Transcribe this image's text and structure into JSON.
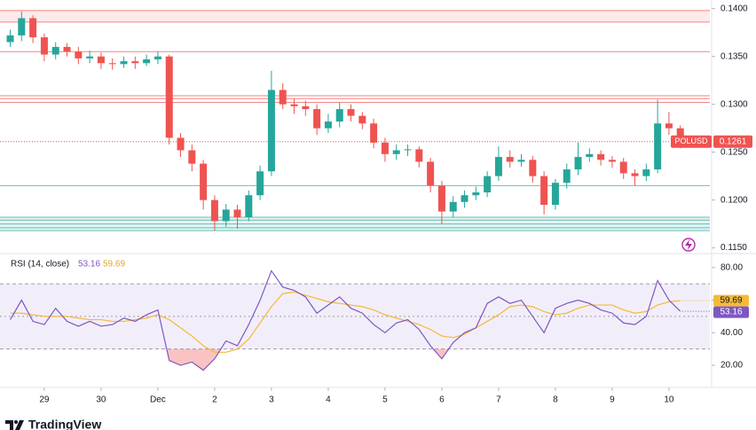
{
  "chart_data": [
    {
      "type": "candlestick",
      "symbol": "POLUSD",
      "x": [
        -0.6,
        -0.4,
        -0.2,
        0,
        0.2,
        0.4,
        0.6,
        0.8,
        1,
        1.2,
        1.4,
        1.6,
        1.8,
        2,
        2.2,
        2.4,
        2.6,
        2.8,
        3,
        3.2,
        3.4,
        3.6,
        3.8,
        4,
        4.2,
        4.4,
        4.6,
        4.8,
        5,
        5.2,
        5.4,
        5.6,
        5.8,
        6,
        6.2,
        6.4,
        6.6,
        6.8,
        7,
        7.2,
        7.4,
        7.6,
        7.8,
        8,
        8.2,
        8.4,
        8.6,
        8.8,
        9,
        9.2,
        9.4,
        9.6,
        9.8,
        10,
        10.2,
        10.4,
        10.6,
        10.8,
        11,
        11.2
      ],
      "open": [
        0.1365,
        0.1372,
        0.139,
        0.137,
        0.1352,
        0.136,
        0.1355,
        0.1348,
        0.135,
        0.1343,
        0.1342,
        0.1345,
        0.1343,
        0.1347,
        0.135,
        0.1265,
        0.1252,
        0.1238,
        0.12,
        0.1178,
        0.119,
        0.1182,
        0.1205,
        0.123,
        0.1315,
        0.13,
        0.1298,
        0.1295,
        0.1275,
        0.1282,
        0.1295,
        0.1288,
        0.128,
        0.126,
        0.1248,
        0.1252,
        0.1253,
        0.124,
        0.1215,
        0.1188,
        0.1198,
        0.1205,
        0.1208,
        0.1225,
        0.1245,
        0.124,
        0.1242,
        0.1225,
        0.1195,
        0.1218,
        0.1232,
        0.1245,
        0.1248,
        0.1242,
        0.124,
        0.1228,
        0.1225,
        0.1232,
        0.128,
        0.1275
      ],
      "high": [
        0.1378,
        0.1397,
        0.1393,
        0.1374,
        0.1365,
        0.1364,
        0.136,
        0.1356,
        0.1354,
        0.1348,
        0.135,
        0.135,
        0.1352,
        0.1355,
        0.1352,
        0.127,
        0.1258,
        0.1242,
        0.1205,
        0.1196,
        0.1195,
        0.121,
        0.1236,
        0.1335,
        0.1322,
        0.1306,
        0.1304,
        0.13,
        0.129,
        0.1302,
        0.13,
        0.1292,
        0.1285,
        0.1265,
        0.1258,
        0.1258,
        0.1256,
        0.1244,
        0.122,
        0.1204,
        0.121,
        0.1214,
        0.123,
        0.1256,
        0.1252,
        0.1248,
        0.1246,
        0.123,
        0.1222,
        0.1238,
        0.126,
        0.1254,
        0.1252,
        0.1246,
        0.1244,
        0.1232,
        0.1238,
        0.1305,
        0.1292,
        0.1278
      ],
      "low": [
        0.136,
        0.1366,
        0.1364,
        0.1345,
        0.1347,
        0.135,
        0.1342,
        0.1343,
        0.1337,
        0.1336,
        0.1338,
        0.1337,
        0.134,
        0.1342,
        0.1258,
        0.1245,
        0.123,
        0.119,
        0.1168,
        0.1172,
        0.117,
        0.1178,
        0.12,
        0.1225,
        0.1295,
        0.129,
        0.1288,
        0.1268,
        0.127,
        0.1276,
        0.1282,
        0.1274,
        0.1254,
        0.124,
        0.1242,
        0.1246,
        0.1234,
        0.1208,
        0.1175,
        0.1182,
        0.1192,
        0.12,
        0.1203,
        0.122,
        0.1234,
        0.1235,
        0.1218,
        0.1185,
        0.119,
        0.1212,
        0.1226,
        0.124,
        0.1236,
        0.1234,
        0.1222,
        0.1215,
        0.122,
        0.1228,
        0.1268,
        0.1254
      ],
      "close": [
        0.1372,
        0.139,
        0.137,
        0.1352,
        0.136,
        0.1355,
        0.1348,
        0.135,
        0.1343,
        0.1342,
        0.1345,
        0.1343,
        0.1347,
        0.135,
        0.1265,
        0.1252,
        0.1238,
        0.12,
        0.1178,
        0.119,
        0.1182,
        0.1205,
        0.123,
        0.1315,
        0.13,
        0.1298,
        0.1295,
        0.1275,
        0.1282,
        0.1295,
        0.1288,
        0.128,
        0.126,
        0.1248,
        0.1252,
        0.1253,
        0.124,
        0.1215,
        0.1188,
        0.1198,
        0.1205,
        0.1208,
        0.1225,
        0.1245,
        0.124,
        0.1242,
        0.1225,
        0.1195,
        0.1218,
        0.1232,
        0.1245,
        0.1248,
        0.1242,
        0.124,
        0.1228,
        0.1225,
        0.1232,
        0.128,
        0.1275,
        0.1261
      ],
      "up_color": "#26a69a",
      "down_color": "#ef5350",
      "xlim": [
        -0.78,
        11.72
      ],
      "xticks": [
        {
          "value": 0,
          "label": "29"
        },
        {
          "value": 1,
          "label": "30"
        },
        {
          "value": 2,
          "label": "Dec"
        },
        {
          "value": 3,
          "label": "2"
        },
        {
          "value": 4,
          "label": "3"
        },
        {
          "value": 5,
          "label": "4"
        },
        {
          "value": 6,
          "label": "5"
        },
        {
          "value": 7,
          "label": "6"
        },
        {
          "value": 8,
          "label": "7"
        },
        {
          "value": 9,
          "label": "8"
        },
        {
          "value": 10,
          "label": "9"
        },
        {
          "value": 11,
          "label": "10"
        }
      ],
      "ylim": [
        0.1145,
        0.1409
      ],
      "yticks": [
        {
          "value": 0.14,
          "label": "0.1400"
        },
        {
          "value": 0.135,
          "label": "0.1350"
        },
        {
          "value": 0.13,
          "label": "0.1300"
        },
        {
          "value": 0.125,
          "label": "0.1250"
        },
        {
          "value": 0.12,
          "label": "0.1200"
        },
        {
          "value": 0.115,
          "label": "0.1150"
        }
      ],
      "zones": [
        {
          "from": 0.1386,
          "to": 0.1398,
          "color": "#ef5350"
        },
        {
          "from": 0.1168,
          "to": 0.1182,
          "color": "#26a69a"
        }
      ],
      "levels": [
        {
          "value": 0.1398,
          "color": "#ef5350"
        },
        {
          "value": 0.1386,
          "color": "#ef5350"
        },
        {
          "value": 0.1355,
          "color": "#ef5350"
        },
        {
          "value": 0.1309,
          "color": "#ef5350"
        },
        {
          "value": 0.1306,
          "color": "#ef5350"
        },
        {
          "value": 0.1302,
          "color": "#ef5350"
        },
        {
          "value": 0.1215,
          "color": "#26a69a"
        },
        {
          "value": 0.1182,
          "color": "#26a69a"
        },
        {
          "value": 0.1179,
          "color": "#26a69a"
        },
        {
          "value": 0.1175,
          "color": "#26a69a"
        },
        {
          "value": 0.1171,
          "color": "#26a69a"
        },
        {
          "value": 0.1168,
          "color": "#26a69a"
        }
      ]
    },
    {
      "type": "line",
      "title": "RSI (14, close)",
      "series": [
        {
          "color": "#7e57c2",
          "values": [
            48,
            60,
            47,
            45,
            55,
            47,
            44,
            47,
            44,
            45,
            49,
            47,
            51,
            54,
            23,
            20,
            22,
            17,
            24,
            35,
            32,
            45,
            60,
            78,
            68,
            66,
            62,
            52,
            57,
            62,
            55,
            52,
            45,
            40,
            46,
            48,
            42,
            32,
            24,
            34,
            40,
            43,
            58,
            62,
            58,
            60,
            50,
            40,
            55,
            58,
            60,
            58,
            54,
            52,
            46,
            45,
            50,
            72,
            60,
            53.16
          ]
        },
        {
          "color": "#f5b93a",
          "values": [
            52,
            52,
            51,
            50,
            50,
            50,
            49,
            48,
            48,
            47,
            47,
            48,
            49,
            51,
            48,
            43,
            38,
            32,
            28,
            28,
            30,
            36,
            46,
            56,
            64,
            65,
            63,
            61,
            59,
            58,
            57,
            56,
            54,
            51,
            49,
            47,
            45,
            42,
            38,
            37,
            39,
            43,
            47,
            51,
            56,
            57,
            56,
            53,
            51,
            52,
            55,
            57,
            57,
            57,
            54,
            52,
            53,
            57,
            59,
            59.69
          ]
        }
      ],
      "ylim": [
        7.5,
        87.5
      ],
      "yticks": [
        {
          "value": 80,
          "label": "80.00"
        },
        {
          "value": 60,
          "label": "60.00"
        },
        {
          "value": 40,
          "label": "40.00"
        },
        {
          "value": 20,
          "label": "20.00"
        }
      ],
      "upper_band": 70,
      "middle_band": 50,
      "lower_band": 30,
      "band_color": "#7e57c2",
      "oversold_color": "#ef5350"
    }
  ],
  "footer": {
    "brand": "TradingView"
  }
}
